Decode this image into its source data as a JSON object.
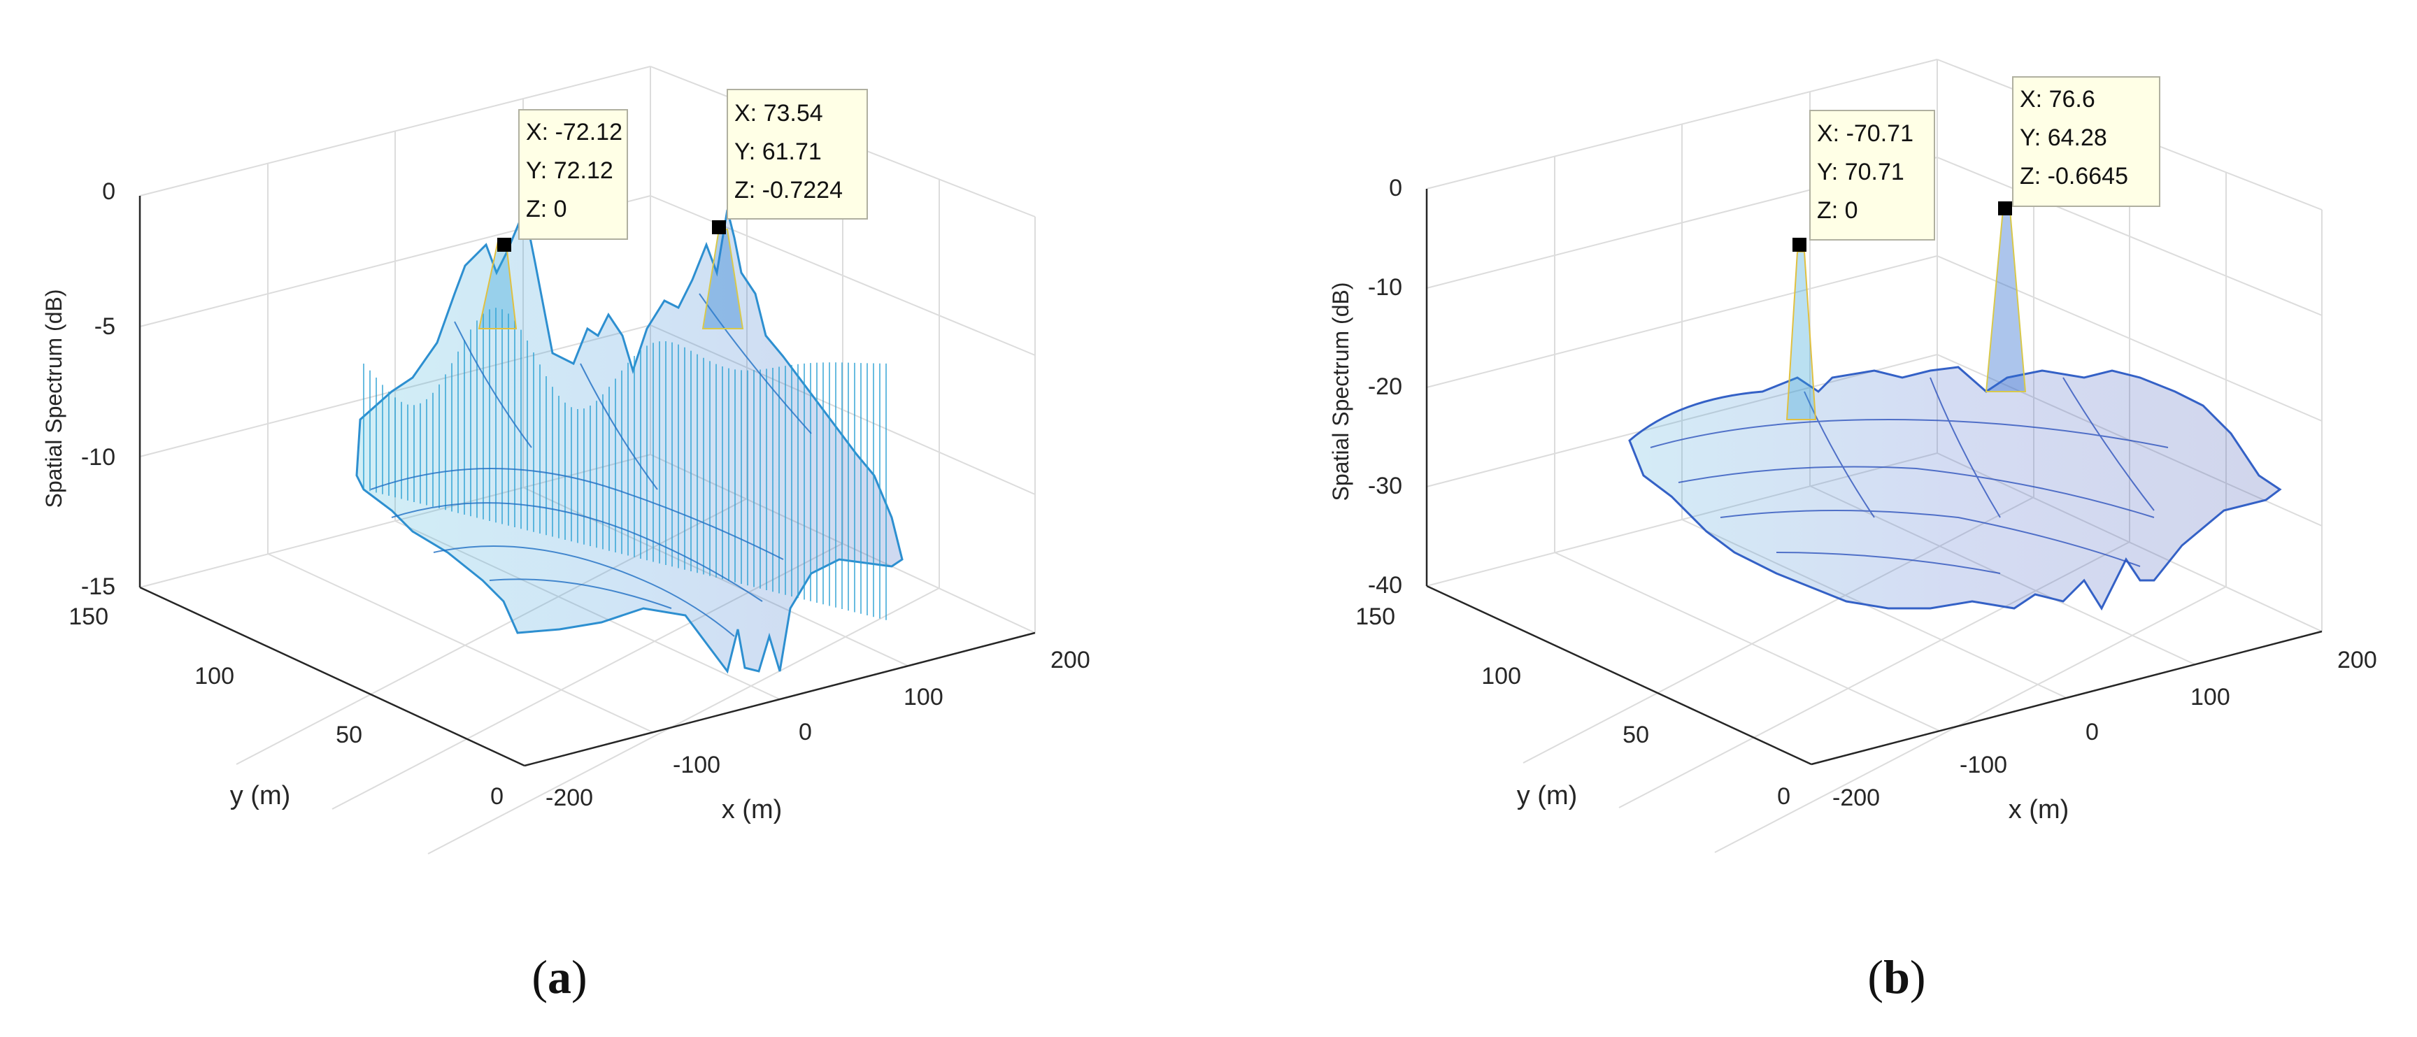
{
  "chart_data": [
    {
      "type": "surface",
      "panel_label": "a",
      "zlabel": "Spatial Spectrum (dB)",
      "xlabel": "x (m)",
      "ylabel": "y (m)",
      "xlim": [
        -200,
        200
      ],
      "ylim": [
        0,
        150
      ],
      "zlim": [
        -15,
        0
      ],
      "x_ticks": [
        "-200",
        "-100",
        "0",
        "100",
        "200"
      ],
      "y_ticks": [
        "0",
        "50",
        "100",
        "150"
      ],
      "z_ticks": [
        "0",
        "-5",
        "-10",
        "-15"
      ],
      "datatips": [
        {
          "x": "X: -72.12",
          "y": "Y: 72.12",
          "z": "Z: 0",
          "x_value": -72.12,
          "y_value": 72.12,
          "z_value": 0
        },
        {
          "x": "X: 73.54",
          "y": "Y: 61.71",
          "z": "Z: -0.7224",
          "x_value": 73.54,
          "y_value": 61.71,
          "z_value": -0.7224
        }
      ]
    },
    {
      "type": "surface",
      "panel_label": "b",
      "zlabel": "Spatial Spectrum (dB)",
      "xlabel": "x (m)",
      "ylabel": "y (m)",
      "xlim": [
        -200,
        200
      ],
      "ylim": [
        0,
        150
      ],
      "zlim": [
        -40,
        0
      ],
      "x_ticks": [
        "-200",
        "-100",
        "0",
        "100",
        "200"
      ],
      "y_ticks": [
        "0",
        "50",
        "100",
        "150"
      ],
      "z_ticks": [
        "0",
        "-10",
        "-20",
        "-30",
        "-40"
      ],
      "datatips": [
        {
          "x": "X: -70.71",
          "y": "Y: 70.71",
          "z": "Z: 0",
          "x_value": -70.71,
          "y_value": 70.71,
          "z_value": 0
        },
        {
          "x": "X: 76.6",
          "y": "Y: 64.28",
          "z": "Z: -0.6645",
          "x_value": 76.6,
          "y_value": 64.28,
          "z_value": -0.6645
        }
      ]
    }
  ]
}
